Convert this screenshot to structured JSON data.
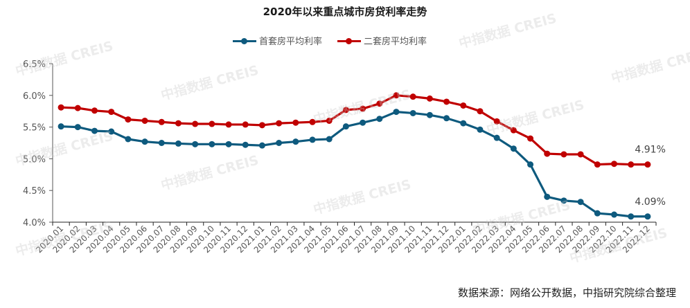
{
  "title": "2020年以来重点城市房贷利率走势",
  "source": "数据来源：网络公开数据，中指研究院综合整理",
  "watermark": "中指数据 CREIS",
  "colors": {
    "first_home": "#0e5a7e",
    "second_home": "#c00000",
    "axis": "#444444",
    "tick_label": "#555555"
  },
  "chart_data": {
    "type": "line",
    "title": "2020年以来重点城市房贷利率走势",
    "xlabel": "",
    "ylabel": "",
    "ylim": [
      4.0,
      6.5
    ],
    "yticks": [
      "6.5%",
      "6.0%",
      "5.5%",
      "5.0%",
      "4.5%",
      "4.0%"
    ],
    "grid": false,
    "legend_position": "top",
    "categories": [
      "2020.01",
      "2020.02",
      "2020.03",
      "2020.04",
      "2020.05",
      "2020.06",
      "2020.07",
      "2020.08",
      "2020.09",
      "2020.10",
      "2020.11",
      "2020.12",
      "2021.01",
      "2021.02",
      "2021.03",
      "2021.04",
      "2021.05",
      "2021.06",
      "2021.07",
      "2021.08",
      "2021.09",
      "2021.10",
      "2021.11",
      "2021.12",
      "2022.01",
      "2022.02",
      "2022.03",
      "2022.04",
      "2022.05",
      "2022.06",
      "2022.07",
      "2022.08",
      "2022.09",
      "2022.10",
      "2022.11",
      "2022.12"
    ],
    "series": [
      {
        "name": "首套房平均利率",
        "color": "#0e5a7e",
        "values": [
          5.51,
          5.5,
          5.44,
          5.43,
          5.31,
          5.27,
          5.25,
          5.24,
          5.23,
          5.23,
          5.23,
          5.22,
          5.21,
          5.25,
          5.27,
          5.3,
          5.31,
          5.51,
          5.57,
          5.63,
          5.74,
          5.72,
          5.69,
          5.64,
          5.56,
          5.46,
          5.33,
          5.16,
          4.91,
          4.4,
          4.34,
          4.32,
          4.14,
          4.12,
          4.09,
          4.09
        ],
        "end_label": "4.09%"
      },
      {
        "name": "二套房平均利率",
        "color": "#c00000",
        "values": [
          5.81,
          5.8,
          5.76,
          5.74,
          5.62,
          5.6,
          5.58,
          5.56,
          5.55,
          5.55,
          5.54,
          5.54,
          5.53,
          5.56,
          5.57,
          5.58,
          5.6,
          5.77,
          5.79,
          5.87,
          6.0,
          5.98,
          5.95,
          5.9,
          5.84,
          5.75,
          5.59,
          5.45,
          5.32,
          5.08,
          5.07,
          5.07,
          4.91,
          4.92,
          4.91,
          4.91
        ],
        "end_label": "4.91%"
      }
    ]
  }
}
